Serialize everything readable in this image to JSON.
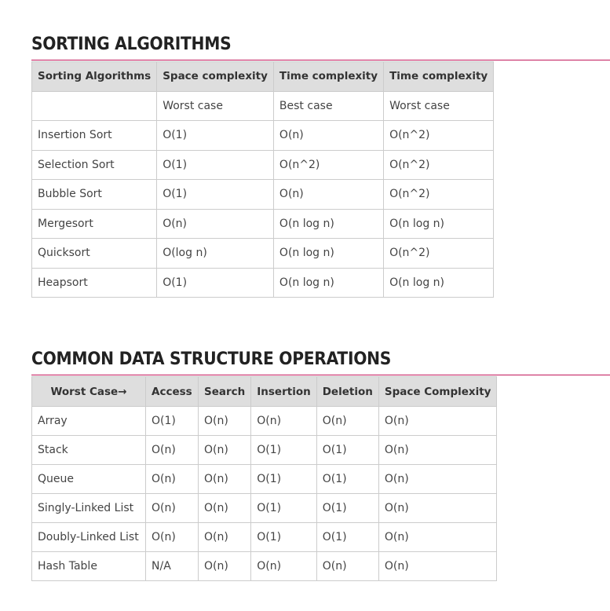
{
  "sorting": {
    "title": "SORTING ALGORITHMS",
    "headers": [
      "Sorting Algorithms",
      "Space complexity",
      "Time complexity",
      "Time complexity"
    ],
    "subheaders": [
      "",
      "Worst case",
      "Best case",
      "Worst case"
    ],
    "rows": [
      [
        "Insertion Sort",
        "O(1)",
        "O(n)",
        "O(n^2)"
      ],
      [
        "Selection Sort",
        "O(1)",
        "O(n^2)",
        "O(n^2)"
      ],
      [
        "Bubble Sort",
        "O(1)",
        "O(n)",
        "O(n^2)"
      ],
      [
        "Mergesort",
        "O(n)",
        "O(n log n)",
        "O(n log n)"
      ],
      [
        "Quicksort",
        "O(log n)",
        "O(n log n)",
        "O(n^2)"
      ],
      [
        "Heapsort",
        "O(1)",
        "O(n log n)",
        "O(n log n)"
      ]
    ]
  },
  "datastructures": {
    "title": "COMMON DATA STRUCTURE OPERATIONS",
    "headers": [
      "Worst Case→",
      "Access",
      "Search",
      "Insertion",
      "Deletion",
      "Space Complexity"
    ],
    "rows": [
      [
        "Array",
        "O(1)",
        "O(n)",
        "O(n)",
        "O(n)",
        "O(n)"
      ],
      [
        "Stack",
        "O(n)",
        "O(n)",
        "O(1)",
        "O(1)",
        "O(n)"
      ],
      [
        "Queue",
        "O(n)",
        "O(n)",
        "O(1)",
        "O(1)",
        "O(n)"
      ],
      [
        "Singly-Linked List",
        "O(n)",
        "O(n)",
        "O(1)",
        "O(1)",
        "O(n)"
      ],
      [
        "Doubly-Linked List",
        "O(n)",
        "O(n)",
        "O(1)",
        "O(1)",
        "O(n)"
      ],
      [
        "Hash Table",
        "N/A",
        "O(n)",
        "O(n)",
        "O(n)",
        "O(n)"
      ]
    ]
  },
  "colors": {
    "rule": "#c2185b",
    "header_bg": "#dedede",
    "border": "#cccccc"
  }
}
